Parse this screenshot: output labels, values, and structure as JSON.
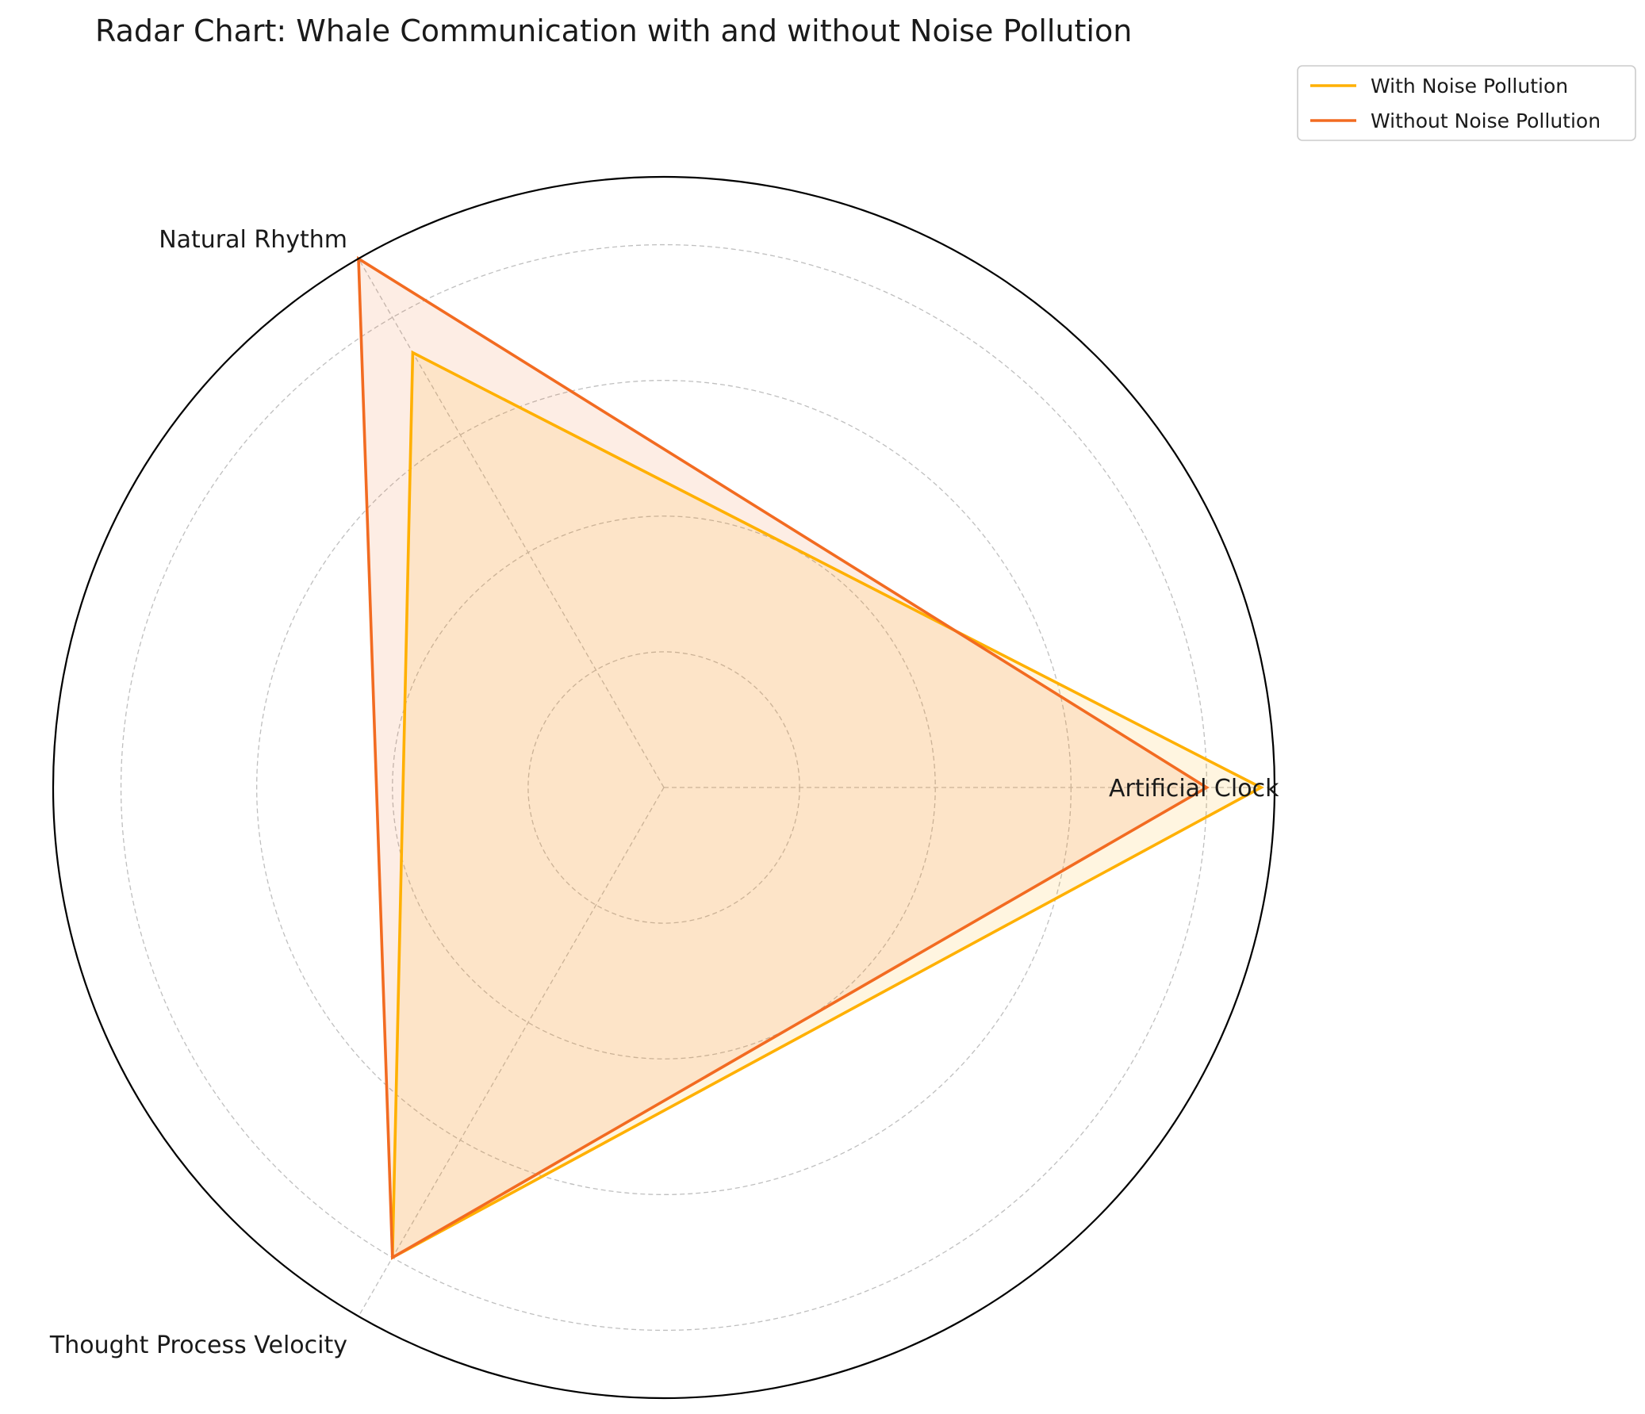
{
  "chart_data": {
    "type": "radar",
    "title": "Radar Chart: Whale Communication with and without Noise Pollution",
    "categories": [
      "Artificial Clock",
      "Natural Rhythm",
      "Thought Process Velocity"
    ],
    "rmax": 4.5,
    "ring_values": [
      1,
      2,
      3,
      4
    ],
    "series": [
      {
        "name": "With Noise Pollution",
        "values": [
          4.4,
          3.7,
          4.0
        ],
        "color": "#FFB000"
      },
      {
        "name": "Without Noise Pollution",
        "values": [
          4.0,
          4.5,
          4.0
        ],
        "color": "#F26B21"
      }
    ],
    "legend_position": "top-right",
    "grid": true
  }
}
